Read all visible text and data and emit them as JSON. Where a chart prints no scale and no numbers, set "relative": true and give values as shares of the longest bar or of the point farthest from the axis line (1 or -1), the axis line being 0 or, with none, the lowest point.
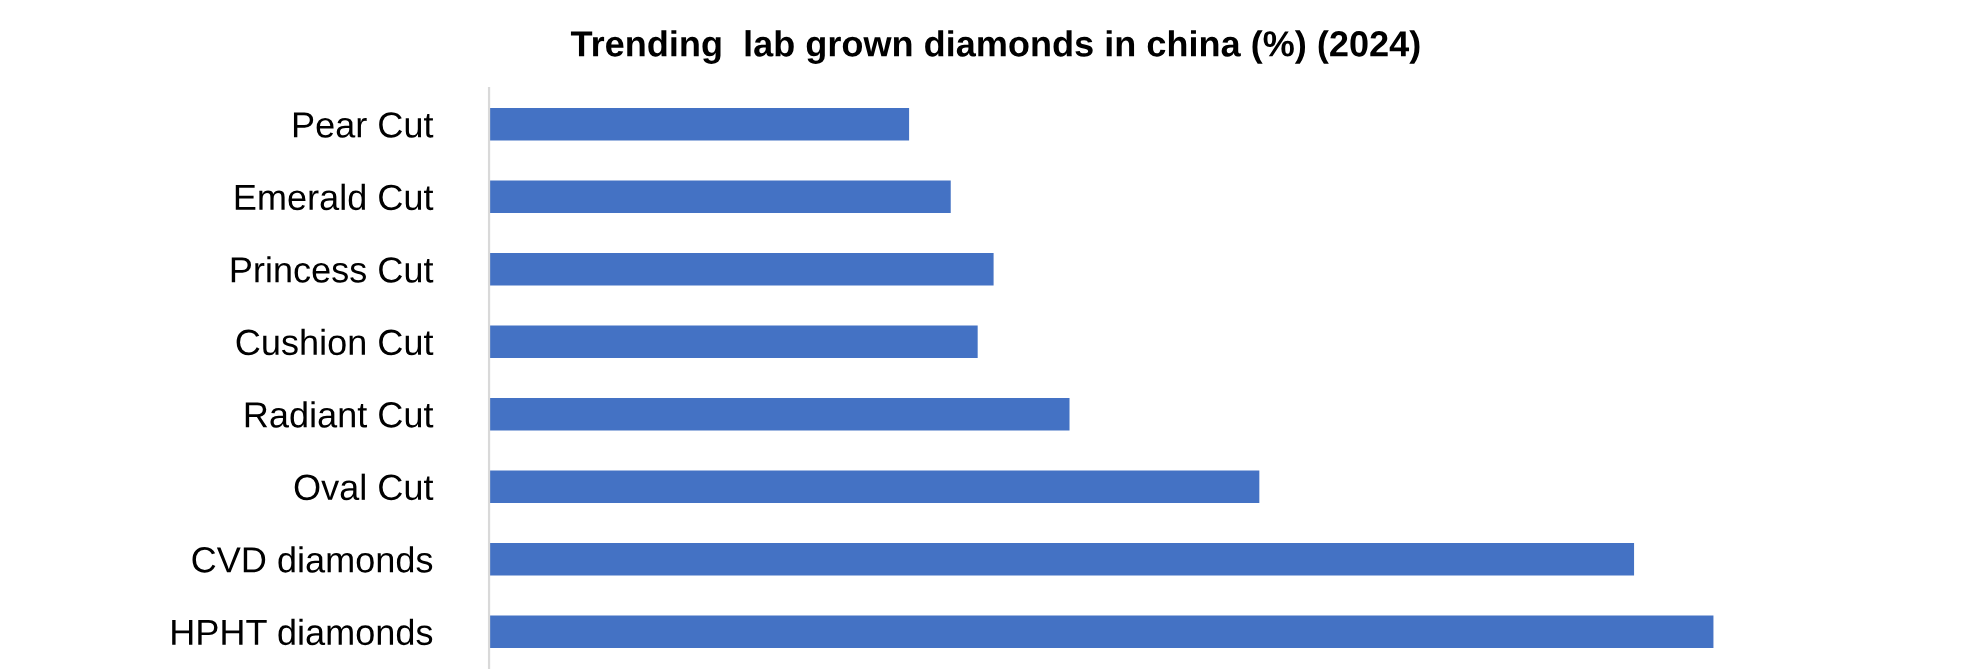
{
  "chart_data": {
    "type": "bar",
    "orientation": "horizontal",
    "relative": true,
    "title": "Trending  lab grown diamonds in china (%) (2024)",
    "categories": [
      "Pear Cut",
      "Emerald Cut",
      "Princess Cut",
      "Cushion Cut",
      "Radiant Cut",
      "Oval Cut",
      "CVD diamonds",
      "HPHT diamonds"
    ],
    "values": [
      0.343,
      0.377,
      0.412,
      0.399,
      0.474,
      0.629,
      0.935,
      1
    ],
    "color": "#4472c4",
    "grid": false,
    "legend": false
  }
}
